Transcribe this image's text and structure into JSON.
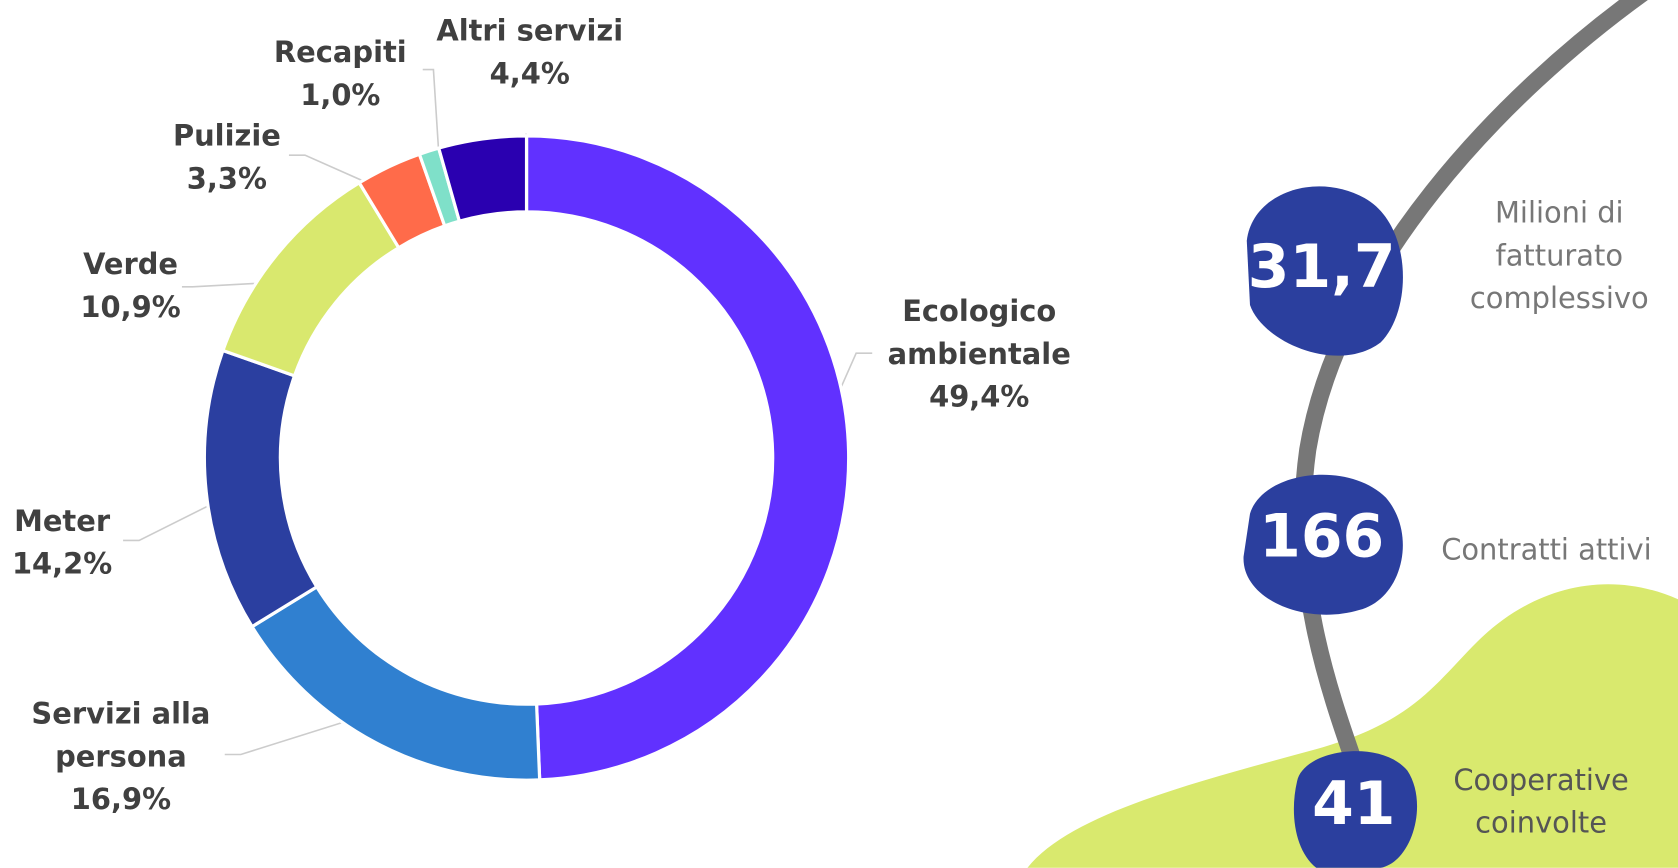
{
  "chart_data": {
    "type": "donut",
    "categories": [
      "Ecologico ambientale",
      "Servizi alla persona",
      "Meter",
      "Verde",
      "Pulizie",
      "Recapiti",
      "Altri servizi"
    ],
    "values": [
      49.4,
      16.9,
      14.2,
      10.9,
      3.3,
      1.0,
      4.4
    ],
    "value_labels": [
      "49,4%",
      "16,9%",
      "14,2%",
      "10,9%",
      "3,3%",
      "1,0%",
      "4,4%"
    ],
    "colors": [
      "#6131ff",
      "#3080d0",
      "#2b3fa0",
      "#d9e86e",
      "#ff6b4a",
      "#7fe0c9",
      "#2a00b0"
    ]
  },
  "stats": [
    {
      "number": "31,7",
      "label": "Milioni di fatturato complessivo"
    },
    {
      "number": "166",
      "label": "Contratti attivi"
    },
    {
      "number": "41",
      "label": "Cooperative coinvolte"
    }
  ]
}
